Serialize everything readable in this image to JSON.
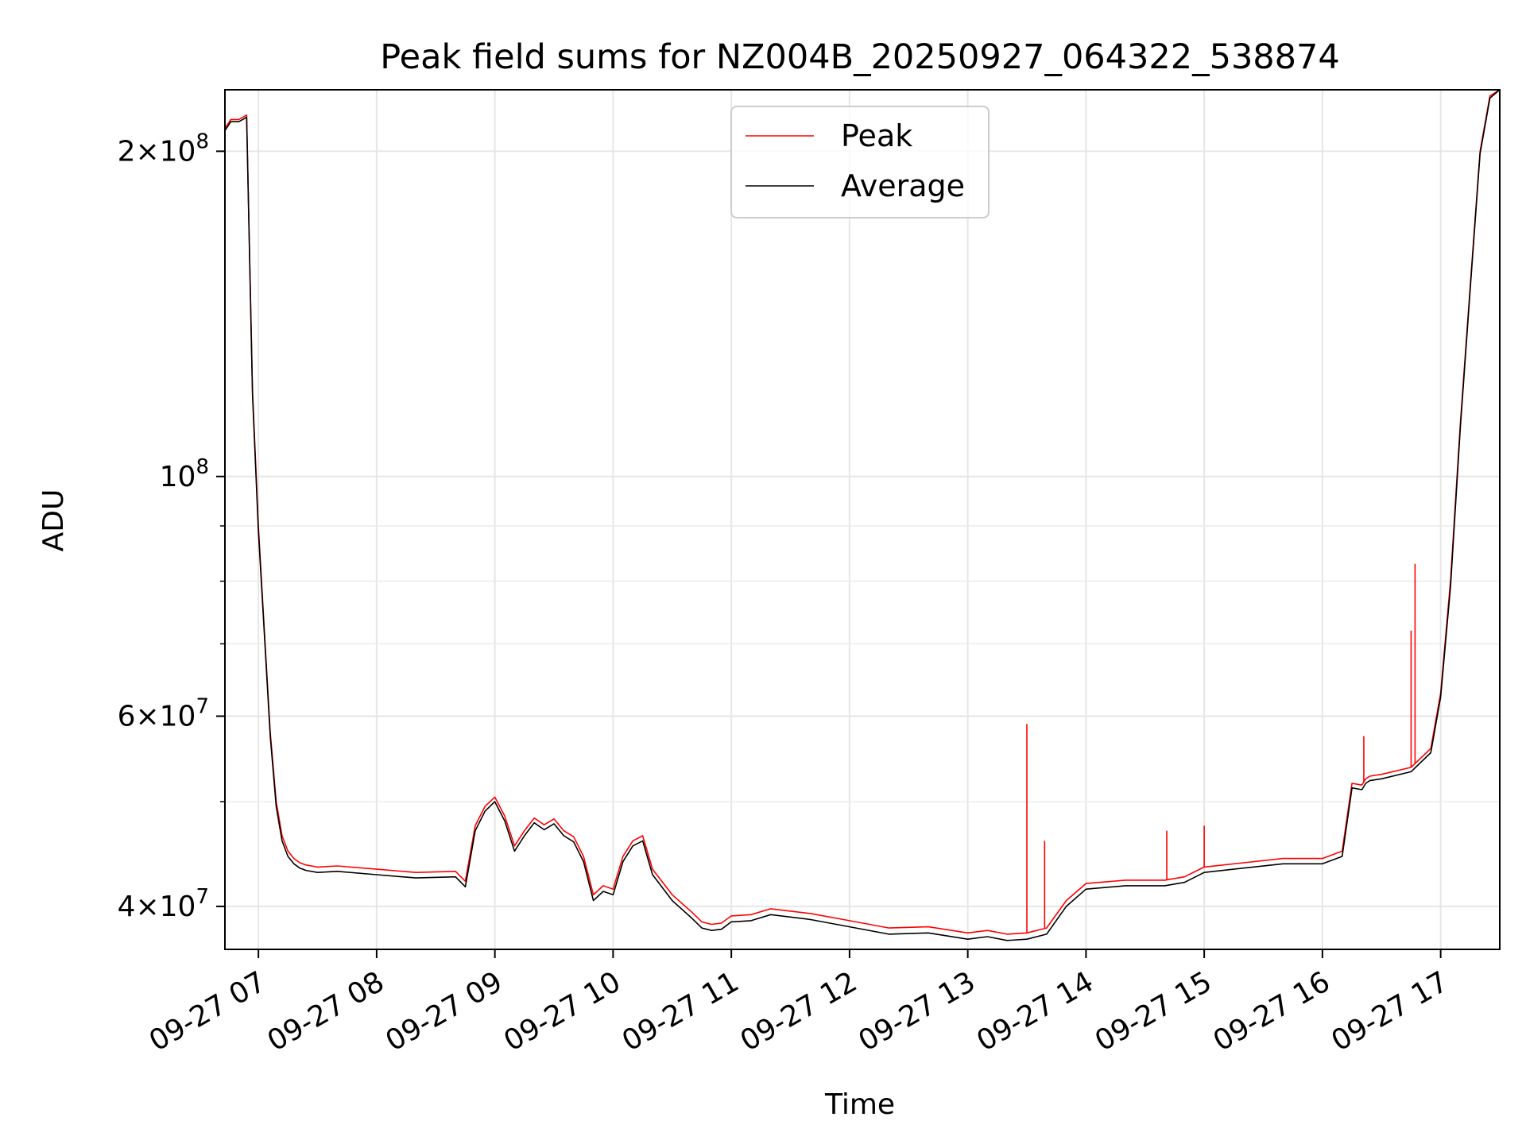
{
  "chart_data": {
    "type": "line",
    "title": "Peak field sums for NZ004B_20250927_064322_538874",
    "xlabel": "Time",
    "ylabel": "ADU",
    "y_scale": "log",
    "xlim": [
      "2025-09-27 06:43",
      "2025-09-27 17:30"
    ],
    "ylim": [
      36500000,
      228000000
    ],
    "x_ticks": [
      "09-27 07",
      "09-27 08",
      "09-27 09",
      "09-27 10",
      "09-27 11",
      "09-27 12",
      "09-27 13",
      "09-27 14",
      "09-27 15",
      "09-27 16",
      "09-27 17"
    ],
    "y_tick_labels": [
      {
        "value": 40000000,
        "mantissa": "4",
        "exp": "7"
      },
      {
        "value": 60000000,
        "mantissa": "6",
        "exp": "7"
      },
      {
        "value": 100000000,
        "mantissa": "",
        "exp": "8"
      },
      {
        "value": 200000000,
        "mantissa": "2",
        "exp": "8"
      }
    ],
    "y_minor_ticks": [
      50000000,
      70000000,
      80000000,
      90000000
    ],
    "grid": true,
    "legend": {
      "position": "upper center"
    },
    "series": [
      {
        "name": "Peak",
        "color": "#ff0000",
        "x": [
          "06:43",
          "06:46",
          "06:50",
          "06:54",
          "06:57",
          "07:00",
          "07:03",
          "07:06",
          "07:09",
          "07:12",
          "07:15",
          "07:18",
          "07:21",
          "07:24",
          "07:30",
          "07:40",
          "08:00",
          "08:20",
          "08:40",
          "08:45",
          "08:50",
          "08:55",
          "09:00",
          "09:05",
          "09:10",
          "09:15",
          "09:20",
          "09:25",
          "09:30",
          "09:35",
          "09:40",
          "09:45",
          "09:50",
          "09:55",
          "10:00",
          "10:05",
          "10:10",
          "10:15",
          "10:20",
          "10:30",
          "10:40",
          "10:45",
          "10:50",
          "10:55",
          "11:00",
          "11:10",
          "11:20",
          "11:40",
          "12:00",
          "12:20",
          "12:40",
          "13:00",
          "13:10",
          "13:20",
          "13:30",
          "13:40",
          "13:50",
          "14:00",
          "14:20",
          "14:40",
          "14:50",
          "15:00",
          "15:20",
          "15:40",
          "16:00",
          "16:10",
          "16:15",
          "16:20",
          "16:22",
          "16:24",
          "16:30",
          "16:45",
          "16:55",
          "17:00",
          "17:05",
          "17:10",
          "17:15",
          "17:20",
          "17:25",
          "17:30"
        ],
        "y": [
          210000000,
          214000000,
          214000000,
          216000000,
          120000000,
          90000000,
          72000000,
          58000000,
          50000000,
          46500000,
          45000000,
          44300000,
          43900000,
          43700000,
          43500000,
          43600000,
          43300000,
          43000000,
          43100000,
          42200000,
          47500000,
          49500000,
          50500000,
          48500000,
          45500000,
          47000000,
          48300000,
          47600000,
          48200000,
          47000000,
          46400000,
          44500000,
          41000000,
          41800000,
          41500000,
          44500000,
          46000000,
          46500000,
          43300000,
          41000000,
          39500000,
          38700000,
          38500000,
          38600000,
          39200000,
          39300000,
          39800000,
          39400000,
          38800000,
          38200000,
          38300000,
          37800000,
          38000000,
          37700000,
          37800000,
          38200000,
          40500000,
          42000000,
          42300000,
          42300000,
          42600000,
          43500000,
          43900000,
          44300000,
          44300000,
          45000000,
          52000000,
          51800000,
          52500000,
          52800000,
          53000000,
          53800000,
          56000000,
          63000000,
          80000000,
          112000000,
          150000000,
          200000000,
          225000000,
          228000000
        ],
        "spikes": [
          {
            "x": "13:30",
            "y": 59000000
          },
          {
            "x": "13:39",
            "y": 46000000
          },
          {
            "x": "14:41",
            "y": 47000000
          },
          {
            "x": "15:00",
            "y": 47500000
          },
          {
            "x": "16:21",
            "y": 57500000
          },
          {
            "x": "16:45",
            "y": 72000000
          },
          {
            "x": "16:47",
            "y": 83000000
          }
        ]
      },
      {
        "name": "Average",
        "color": "#000000",
        "x": [
          "06:43",
          "06:46",
          "06:50",
          "06:54",
          "06:57",
          "07:00",
          "07:03",
          "07:06",
          "07:09",
          "07:12",
          "07:15",
          "07:18",
          "07:21",
          "07:24",
          "07:30",
          "07:40",
          "08:00",
          "08:20",
          "08:40",
          "08:45",
          "08:50",
          "08:55",
          "09:00",
          "09:05",
          "09:10",
          "09:15",
          "09:20",
          "09:25",
          "09:30",
          "09:35",
          "09:40",
          "09:45",
          "09:50",
          "09:55",
          "10:00",
          "10:05",
          "10:10",
          "10:15",
          "10:20",
          "10:30",
          "10:40",
          "10:45",
          "10:50",
          "10:55",
          "11:00",
          "11:10",
          "11:20",
          "11:40",
          "12:00",
          "12:20",
          "12:40",
          "13:00",
          "13:10",
          "13:20",
          "13:30",
          "13:40",
          "13:50",
          "14:00",
          "14:20",
          "14:40",
          "14:50",
          "15:00",
          "15:20",
          "15:40",
          "16:00",
          "16:10",
          "16:15",
          "16:20",
          "16:22",
          "16:24",
          "16:30",
          "16:45",
          "16:55",
          "17:00",
          "17:05",
          "17:10",
          "17:15",
          "17:20",
          "17:25",
          "17:30"
        ],
        "y": [
          209000000,
          213000000,
          213000000,
          215000000,
          119000000,
          89000000,
          71500000,
          57500000,
          49500000,
          46000000,
          44500000,
          43800000,
          43400000,
          43200000,
          43000000,
          43100000,
          42800000,
          42500000,
          42600000,
          41700000,
          47000000,
          49000000,
          50000000,
          48000000,
          45000000,
          46500000,
          47800000,
          47100000,
          47700000,
          46500000,
          45900000,
          44000000,
          40500000,
          41300000,
          41000000,
          44000000,
          45500000,
          46000000,
          42800000,
          40500000,
          39000000,
          38200000,
          38000000,
          38100000,
          38700000,
          38800000,
          39300000,
          38900000,
          38300000,
          37700000,
          37800000,
          37300000,
          37500000,
          37200000,
          37300000,
          37700000,
          40000000,
          41500000,
          41800000,
          41800000,
          42100000,
          43000000,
          43400000,
          43800000,
          43800000,
          44500000,
          51500000,
          51300000,
          52000000,
          52300000,
          52500000,
          53300000,
          55500000,
          62500000,
          79000000,
          111000000,
          149000000,
          199000000,
          224000000,
          228000000
        ]
      }
    ]
  }
}
